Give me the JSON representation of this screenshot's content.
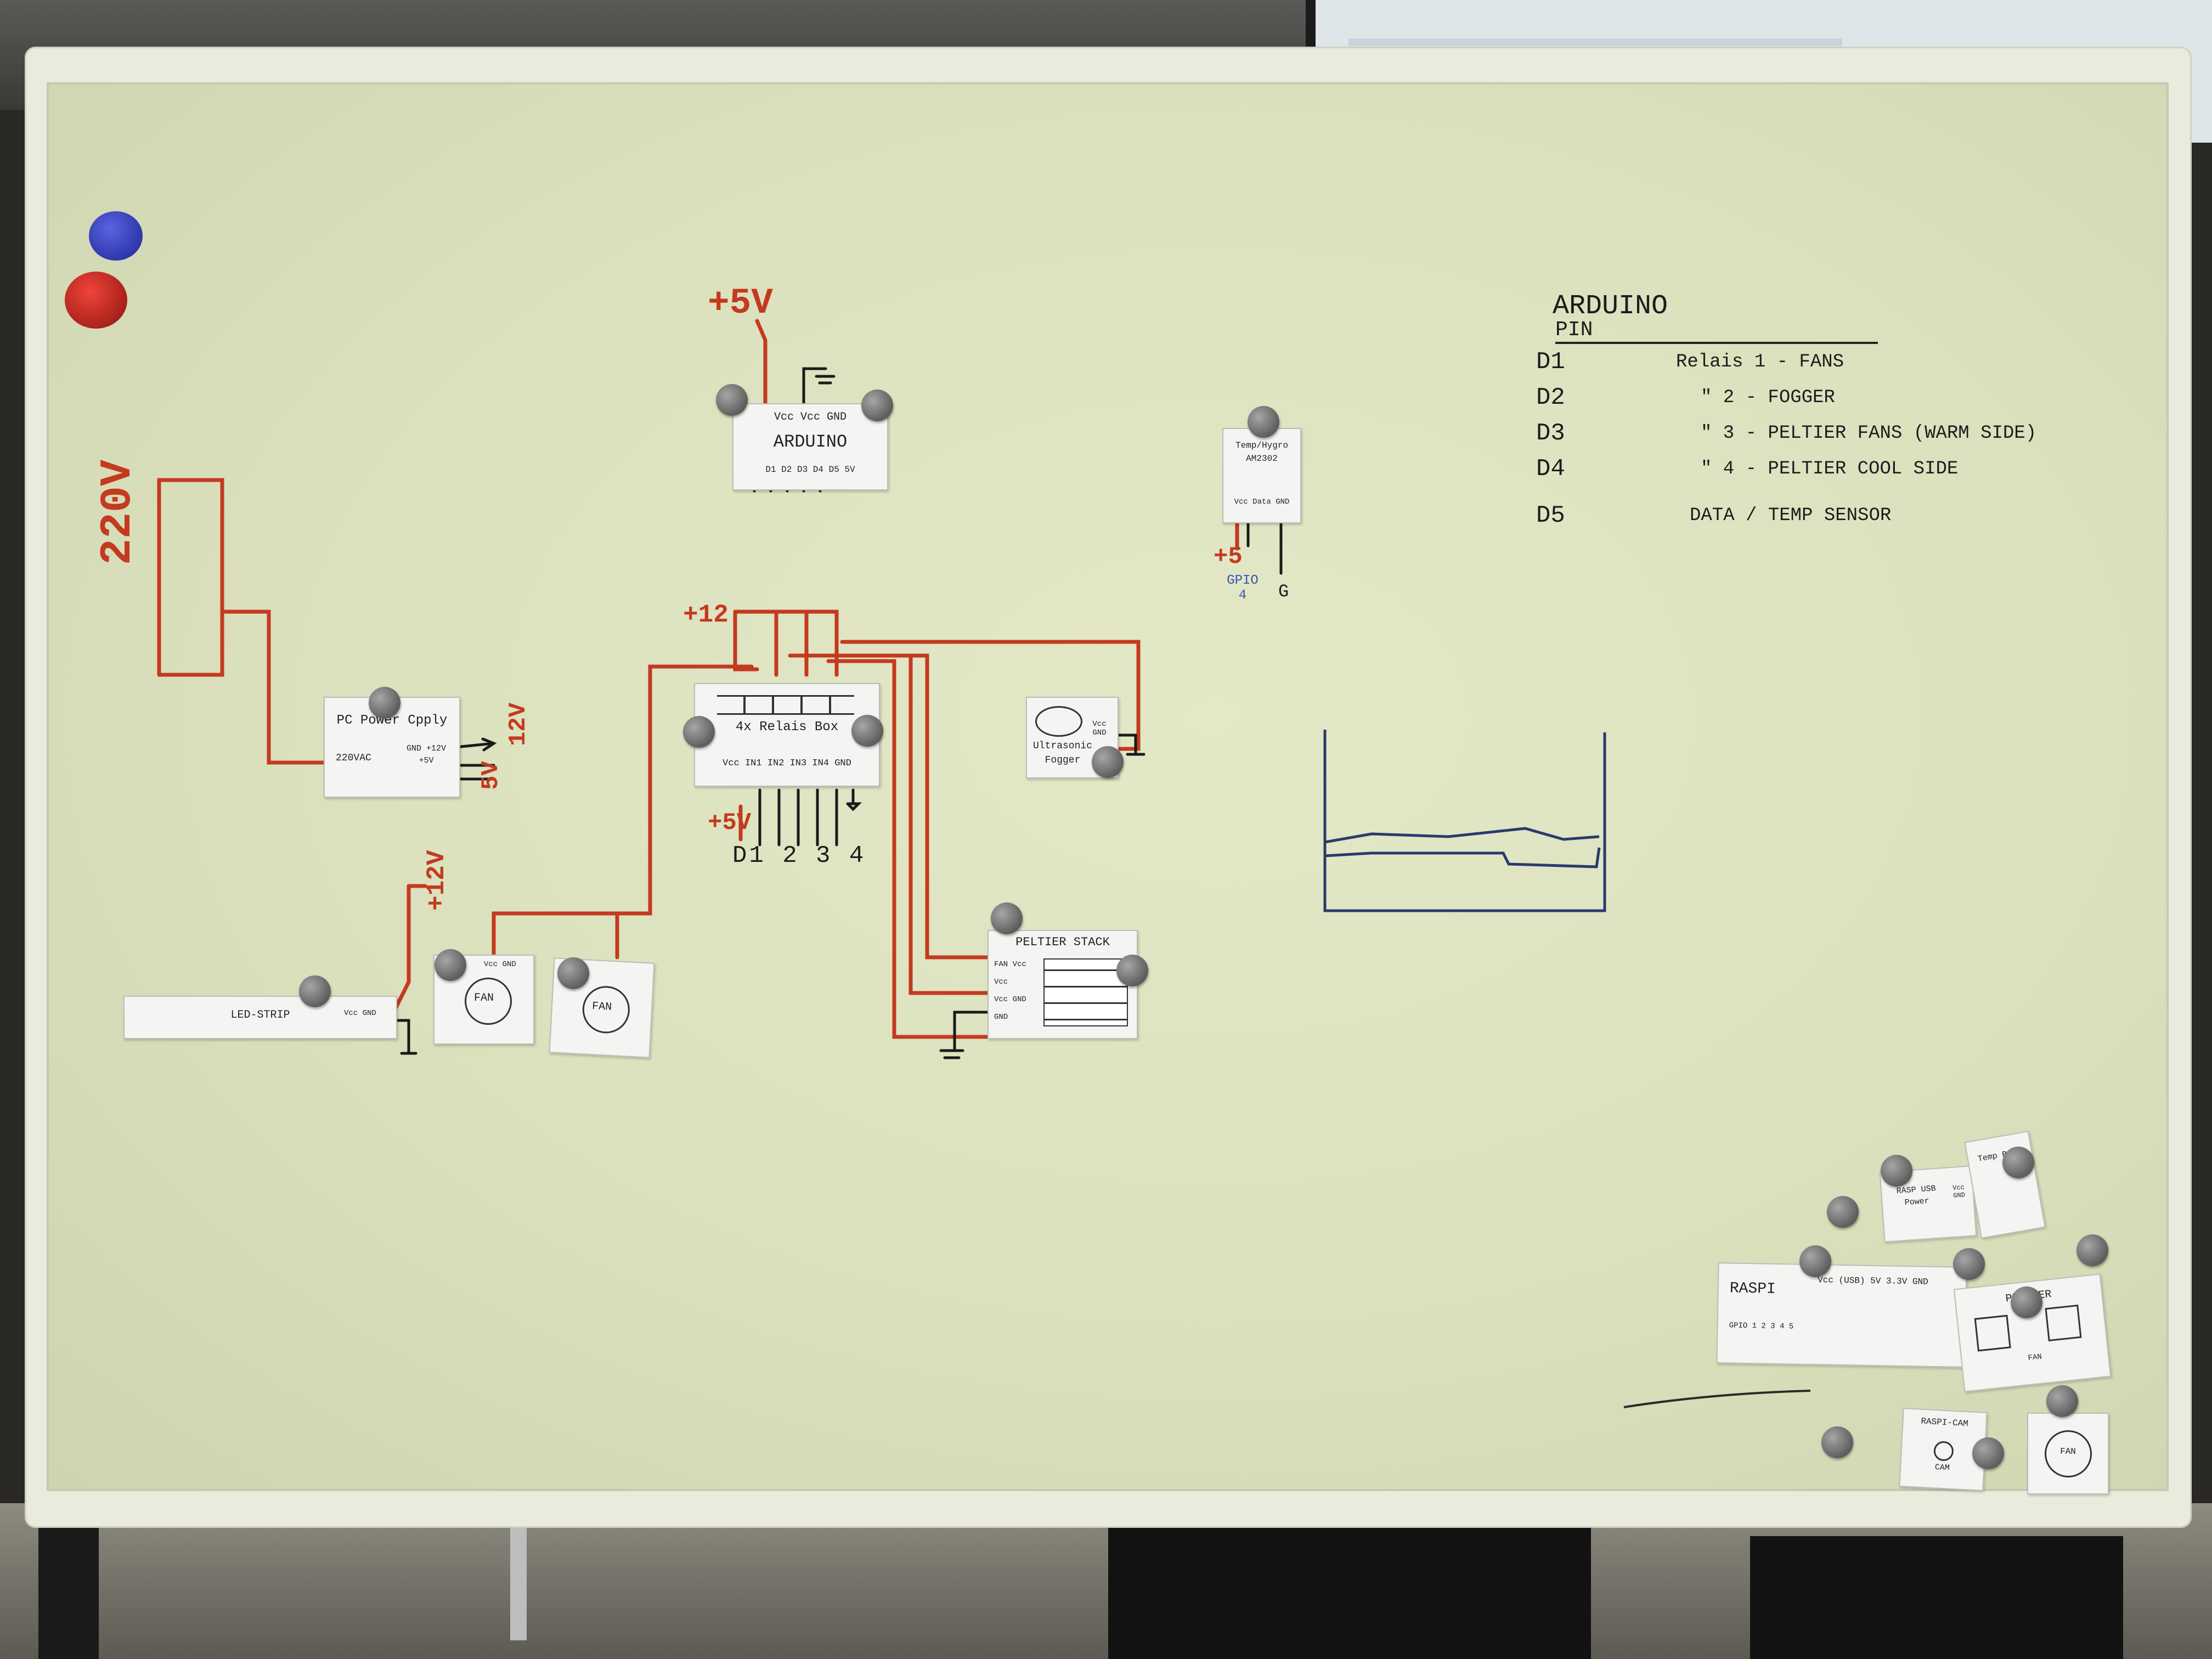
{
  "psu_label_220v": "220V",
  "arduino": {
    "supply": "+5V",
    "name": "ARDUINO",
    "pins_top": "Vcc Vcc GND",
    "pins_bottom": "D1 D2 D3 D4 D5 5V"
  },
  "psu": {
    "name": "PC Power Cpply",
    "input": "220VAC",
    "outputs": "GND +12V +5V",
    "out_12v": "12V",
    "out_5v": "5V"
  },
  "relais": {
    "supply": "+12",
    "name": "4x Relais Box",
    "pins": "Vcc IN1 IN2 IN3 IN4 GND",
    "logic_supply": "+5V",
    "inputs": "D1 2 3 4"
  },
  "sensor": {
    "name": "Temp/Hygro AM2302",
    "pins": "Vcc Data GND",
    "supply": "+5",
    "data": "GPIO 4",
    "gnd": "G"
  },
  "fogger": {
    "name": "Ultrasonic Fogger",
    "pins": "Vcc GND"
  },
  "led": {
    "supply": "+12V",
    "name": "LED-STRIP",
    "pins": "Vcc GND"
  },
  "fan1": {
    "name": "FAN",
    "pins": "Vcc GND"
  },
  "fan2": {
    "name": "FAN"
  },
  "peltier": {
    "name": "PELTIER STACK",
    "rows": [
      "FAN Vcc",
      "Vcc",
      "Vcc GND",
      "GND"
    ]
  },
  "pin_table": {
    "title": "ARDUINO",
    "subtitle": "PIN",
    "rows": [
      {
        "pin": "D1",
        "desc": "Relais 1 - FANS"
      },
      {
        "pin": "D2",
        "desc": "\" 2 - FOGGER"
      },
      {
        "pin": "D3",
        "desc": "\" 3 - PELTIER FANS (WARM SIDE)"
      },
      {
        "pin": "D4",
        "desc": "\" 4 - PELTIER COOL SIDE"
      },
      {
        "pin": "D5",
        "desc": "DATA / TEMP SENSOR"
      }
    ]
  },
  "raspi": {
    "name": "RASPI",
    "pins": "Vcc (USB) 5V 3.3V GND",
    "gpio": "GPIO 1 2 3 4 5"
  },
  "raspi_power": {
    "name": "RASP USB Power",
    "pins": "Vcc GND"
  },
  "raspi_cam": {
    "name": "RASPI-CAM",
    "sub": "CAM"
  },
  "peltier_ctrl": {
    "name": "PELTIER",
    "sub": "FAN"
  },
  "fan_small": {
    "name": "FAN"
  },
  "small_card": {
    "name": "Temp Bank"
  }
}
